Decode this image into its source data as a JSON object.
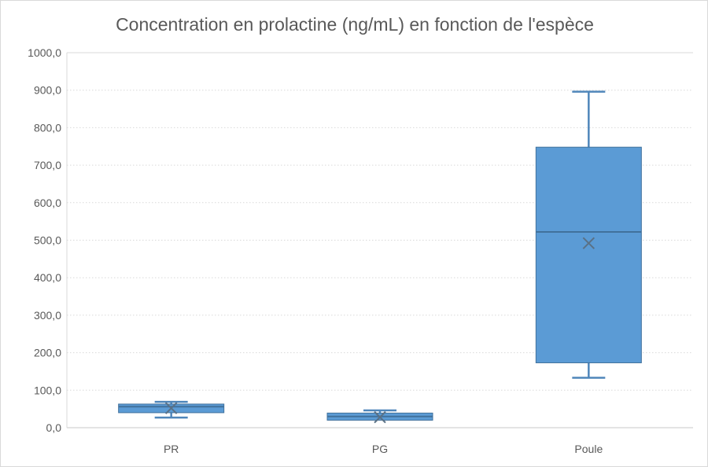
{
  "page": {
    "background_color": "#ffffff",
    "border_color": "#d9d9d9"
  },
  "chart_data": {
    "type": "boxplot",
    "title": "Concentration en prolactine (ng/mL) en fonction de l'espèce",
    "xlabel": "",
    "ylabel": "",
    "categories": [
      "PR",
      "PG",
      "Poule"
    ],
    "series": [
      {
        "name": "PR",
        "min": 27,
        "q1": 40,
        "median": 56,
        "q3": 63,
        "max": 69,
        "mean": 52
      },
      {
        "name": "PG",
        "min": 20,
        "q1": 20,
        "median": 30,
        "q3": 39,
        "max": 46,
        "mean": 28
      },
      {
        "name": "Poule",
        "min": 133,
        "q1": 173,
        "median": 522,
        "q3": 748,
        "max": 896,
        "mean": 492
      }
    ],
    "ylim": [
      0,
      1000
    ],
    "ytick_values": [
      0,
      100,
      200,
      300,
      400,
      500,
      600,
      700,
      800,
      900,
      1000
    ],
    "ytick_labels": [
      "0,0",
      "100,0",
      "200,0",
      "300,0",
      "400,0",
      "500,0",
      "600,0",
      "700,0",
      "800,0",
      "900,0",
      "1000,0"
    ],
    "grid": true,
    "legend": "none",
    "colors": {
      "box_fill": "#5B9BD5",
      "box_border": "#41719C",
      "median_line": "#41719C",
      "mean_marker": "#5a7186",
      "whisker": "#4f86ba",
      "gridline": "#d9d9d9",
      "axis_line": "#c9c9c9",
      "text": "#595959"
    }
  }
}
